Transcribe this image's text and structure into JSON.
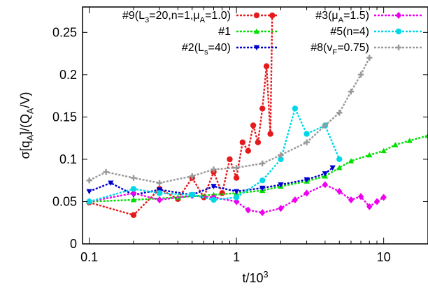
{
  "chart_data": {
    "type": "line",
    "title": "",
    "xlabel": "t/10^3",
    "ylabel": "σ[q_A]/(Q_A/V)",
    "x_scale": "log",
    "xlim": [
      0.09,
      20
    ],
    "ylim": [
      0,
      0.28
    ],
    "x_ticks": [
      {
        "value": 0.1,
        "label": "0.1"
      },
      {
        "value": 1,
        "label": "1"
      },
      {
        "value": 10,
        "label": "10"
      }
    ],
    "y_ticks": [
      {
        "value": 0,
        "label": "0"
      },
      {
        "value": 0.05,
        "label": "0.05"
      },
      {
        "value": 0.1,
        "label": "0.1"
      },
      {
        "value": 0.15,
        "label": "0.15"
      },
      {
        "value": 0.2,
        "label": "0.2"
      },
      {
        "value": 0.25,
        "label": "0.25"
      }
    ],
    "grid": false,
    "legend_position": "top",
    "series": [
      {
        "name": "#9(L3=20,n=1,μA=1.0)",
        "color": "#e41a1c",
        "marker": "circle",
        "x": [
          0.1,
          0.2,
          0.3,
          0.4,
          0.5,
          0.6,
          0.7,
          0.8,
          0.9,
          1.0,
          1.1,
          1.2,
          1.3,
          1.4,
          1.5,
          1.6,
          1.7,
          1.75
        ],
        "y": [
          0.049,
          0.034,
          0.065,
          0.053,
          0.078,
          0.055,
          0.085,
          0.06,
          0.1,
          0.078,
          0.12,
          0.11,
          0.14,
          0.12,
          0.16,
          0.21,
          0.13,
          0.27
        ]
      },
      {
        "name": "#1",
        "color": "#00e000",
        "marker": "triangle",
        "x": [
          0.1,
          0.2,
          0.4,
          0.7,
          1.0,
          1.5,
          2.0,
          3.0,
          4.0,
          5.0,
          6.0,
          8.0,
          10.0,
          12.0,
          15.0,
          20.0
        ],
        "y": [
          0.05,
          0.052,
          0.055,
          0.058,
          0.06,
          0.063,
          0.068,
          0.074,
          0.08,
          0.09,
          0.098,
          0.105,
          0.11,
          0.117,
          0.122,
          0.128
        ]
      },
      {
        "name": "#2(Ls=40)",
        "color": "#0000cc",
        "marker": "triangle-down",
        "x": [
          0.1,
          0.14,
          0.2,
          0.3,
          0.5,
          0.7,
          1.0,
          1.5,
          2.0,
          3.0,
          4.0,
          4.5
        ],
        "y": [
          0.062,
          0.072,
          0.058,
          0.064,
          0.058,
          0.068,
          0.062,
          0.066,
          0.07,
          0.076,
          0.083,
          0.09
        ]
      },
      {
        "name": "#3(μA=1.5)",
        "color": "#ee00ee",
        "marker": "diamond",
        "x": [
          0.1,
          0.2,
          0.3,
          0.5,
          0.7,
          1.0,
          1.2,
          1.5,
          2.0,
          2.5,
          3.0,
          4.0,
          5.0,
          6.0,
          7.0,
          8.0,
          9.0,
          10.0
        ],
        "y": [
          0.05,
          0.06,
          0.052,
          0.057,
          0.055,
          0.05,
          0.04,
          0.037,
          0.042,
          0.052,
          0.06,
          0.07,
          0.062,
          0.052,
          0.056,
          0.044,
          0.05,
          0.055
        ]
      },
      {
        "name": "#5(n=4)",
        "color": "#00d8e8",
        "marker": "circle",
        "x": [
          0.1,
          0.2,
          0.3,
          0.5,
          0.7,
          1.0,
          1.5,
          2.0,
          2.5,
          3.0,
          4.0,
          5.0
        ],
        "y": [
          0.05,
          0.065,
          0.06,
          0.058,
          0.052,
          0.055,
          0.075,
          0.1,
          0.16,
          0.13,
          0.14,
          0.1
        ]
      },
      {
        "name": "#8(vF=0.75)",
        "color": "#999999",
        "marker": "plus",
        "x": [
          0.1,
          0.13,
          0.2,
          0.3,
          0.5,
          0.7,
          1.0,
          1.5,
          2.0,
          3.0,
          4.0,
          5.0,
          6.0,
          7.0,
          8.0
        ],
        "y": [
          0.075,
          0.085,
          0.078,
          0.072,
          0.08,
          0.088,
          0.09,
          0.095,
          0.105,
          0.12,
          0.14,
          0.155,
          0.18,
          0.2,
          0.22
        ]
      }
    ]
  }
}
